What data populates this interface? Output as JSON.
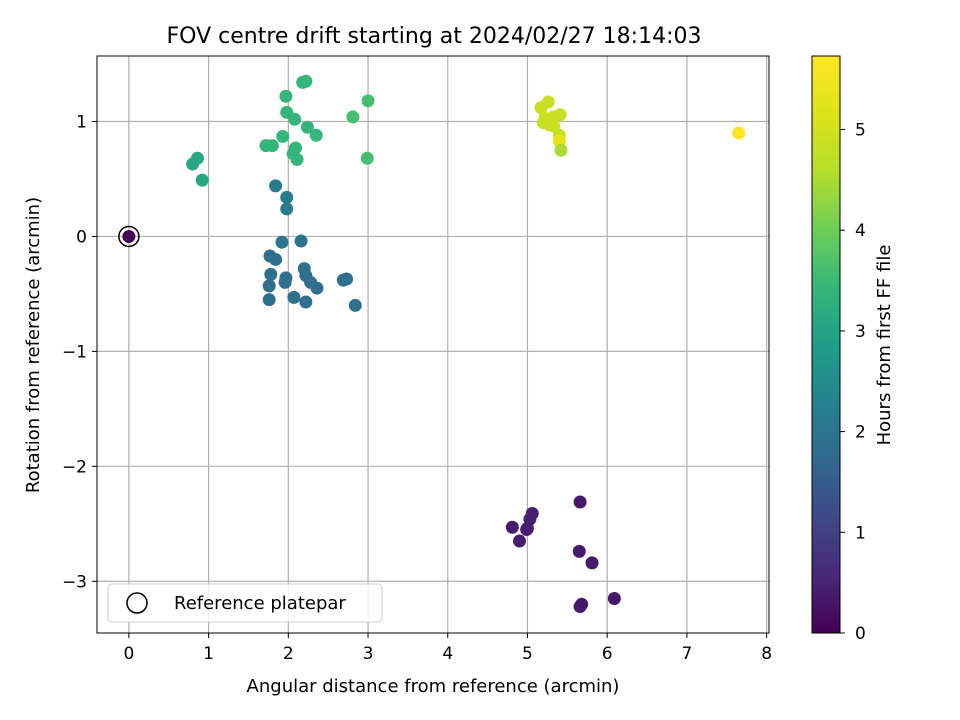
{
  "chart_data": {
    "type": "scatter",
    "title": "FOV centre drift starting at 2024/02/27 18:14:03",
    "xlabel": "Angular distance from reference (arcmin)",
    "ylabel": "Rotation from reference (arcmin)",
    "xlim": [
      -0.4,
      8.03
    ],
    "ylim": [
      -3.45,
      1.57
    ],
    "xticks": [
      0,
      1,
      2,
      3,
      4,
      5,
      6,
      7,
      8
    ],
    "yticks": [
      -3,
      -2,
      -1,
      0,
      1
    ],
    "ytick_labels": [
      "−3",
      "−2",
      "−1",
      "0",
      "1"
    ],
    "grid": true,
    "legend": {
      "location": "lower left",
      "entries": [
        "Reference platepar"
      ]
    },
    "reference_point": {
      "x": 0,
      "y": 0,
      "hours": 0
    },
    "colorbar": {
      "label": "Hours from first FF file",
      "range": [
        0,
        5.73
      ],
      "ticks": [
        0,
        1,
        2,
        3,
        4,
        5
      ],
      "colormap": "viridis"
    },
    "points": [
      {
        "x": 0,
        "y": 0,
        "hours": 0.0
      },
      {
        "x": 5.66,
        "y": -2.31,
        "hours": 0.35
      },
      {
        "x": 4.81,
        "y": -2.53,
        "hours": 0.4
      },
      {
        "x": 4.9,
        "y": -2.65,
        "hours": 0.4
      },
      {
        "x": 5.0,
        "y": -2.54,
        "hours": 0.45
      },
      {
        "x": 5.06,
        "y": -2.41,
        "hours": 0.45
      },
      {
        "x": 5.03,
        "y": -2.46,
        "hours": 0.45
      },
      {
        "x": 4.99,
        "y": -2.55,
        "hours": 0.45
      },
      {
        "x": 5.65,
        "y": -2.74,
        "hours": 0.35
      },
      {
        "x": 5.81,
        "y": -2.84,
        "hours": 0.35
      },
      {
        "x": 6.09,
        "y": -3.15,
        "hours": 0.35
      },
      {
        "x": 5.68,
        "y": -3.2,
        "hours": 0.35
      },
      {
        "x": 5.66,
        "y": -3.22,
        "hours": 0.35
      },
      {
        "x": 1.84,
        "y": 0.44,
        "hours": 2.15
      },
      {
        "x": 1.98,
        "y": 0.34,
        "hours": 2.15
      },
      {
        "x": 1.98,
        "y": 0.24,
        "hours": 2.15
      },
      {
        "x": 1.92,
        "y": -0.05,
        "hours": 2.0
      },
      {
        "x": 2.16,
        "y": -0.04,
        "hours": 2.0
      },
      {
        "x": 1.77,
        "y": -0.17,
        "hours": 1.9
      },
      {
        "x": 1.84,
        "y": -0.2,
        "hours": 1.9
      },
      {
        "x": 1.78,
        "y": -0.33,
        "hours": 1.9
      },
      {
        "x": 1.97,
        "y": -0.36,
        "hours": 1.9
      },
      {
        "x": 1.96,
        "y": -0.4,
        "hours": 1.9
      },
      {
        "x": 2.2,
        "y": -0.28,
        "hours": 1.9
      },
      {
        "x": 2.22,
        "y": -0.34,
        "hours": 1.9
      },
      {
        "x": 2.28,
        "y": -0.4,
        "hours": 1.9
      },
      {
        "x": 2.36,
        "y": -0.45,
        "hours": 1.9
      },
      {
        "x": 1.76,
        "y": -0.43,
        "hours": 1.9
      },
      {
        "x": 1.76,
        "y": -0.55,
        "hours": 1.9
      },
      {
        "x": 2.07,
        "y": -0.53,
        "hours": 1.9
      },
      {
        "x": 2.22,
        "y": -0.57,
        "hours": 1.9
      },
      {
        "x": 2.69,
        "y": -0.38,
        "hours": 1.9
      },
      {
        "x": 2.73,
        "y": -0.37,
        "hours": 1.9
      },
      {
        "x": 2.84,
        "y": -0.6,
        "hours": 1.9
      },
      {
        "x": 0.8,
        "y": 0.63,
        "hours": 3.1
      },
      {
        "x": 0.86,
        "y": 0.68,
        "hours": 3.1
      },
      {
        "x": 0.92,
        "y": 0.49,
        "hours": 3.1
      },
      {
        "x": 1.72,
        "y": 0.79,
        "hours": 3.4
      },
      {
        "x": 1.8,
        "y": 0.79,
        "hours": 3.4
      },
      {
        "x": 1.93,
        "y": 0.87,
        "hours": 3.4
      },
      {
        "x": 1.97,
        "y": 1.22,
        "hours": 3.4
      },
      {
        "x": 1.98,
        "y": 1.08,
        "hours": 3.4
      },
      {
        "x": 2.08,
        "y": 1.02,
        "hours": 3.4
      },
      {
        "x": 2.06,
        "y": 0.72,
        "hours": 3.4
      },
      {
        "x": 2.09,
        "y": 0.77,
        "hours": 3.4
      },
      {
        "x": 2.11,
        "y": 0.67,
        "hours": 3.4
      },
      {
        "x": 2.18,
        "y": 1.34,
        "hours": 3.4
      },
      {
        "x": 2.22,
        "y": 1.35,
        "hours": 3.4
      },
      {
        "x": 2.24,
        "y": 0.95,
        "hours": 3.4
      },
      {
        "x": 2.35,
        "y": 0.88,
        "hours": 3.4
      },
      {
        "x": 2.81,
        "y": 1.04,
        "hours": 3.6
      },
      {
        "x": 3.0,
        "y": 1.18,
        "hours": 3.6
      },
      {
        "x": 2.99,
        "y": 0.68,
        "hours": 3.6
      },
      {
        "x": 5.17,
        "y": 1.12,
        "hours": 4.85
      },
      {
        "x": 5.26,
        "y": 1.17,
        "hours": 4.85
      },
      {
        "x": 5.22,
        "y": 1.03,
        "hours": 4.85
      },
      {
        "x": 5.2,
        "y": 0.99,
        "hours": 4.85
      },
      {
        "x": 5.28,
        "y": 0.97,
        "hours": 4.85
      },
      {
        "x": 5.33,
        "y": 0.96,
        "hours": 4.85
      },
      {
        "x": 5.33,
        "y": 1.04,
        "hours": 4.85
      },
      {
        "x": 5.41,
        "y": 1.06,
        "hours": 4.85
      },
      {
        "x": 5.27,
        "y": 1.01,
        "hours": 4.85
      },
      {
        "x": 5.4,
        "y": 0.88,
        "hours": 4.8
      },
      {
        "x": 5.4,
        "y": 0.83,
        "hours": 5.35
      },
      {
        "x": 5.42,
        "y": 0.75,
        "hours": 4.5
      },
      {
        "x": 7.65,
        "y": 0.9,
        "hours": 5.73
      }
    ]
  }
}
